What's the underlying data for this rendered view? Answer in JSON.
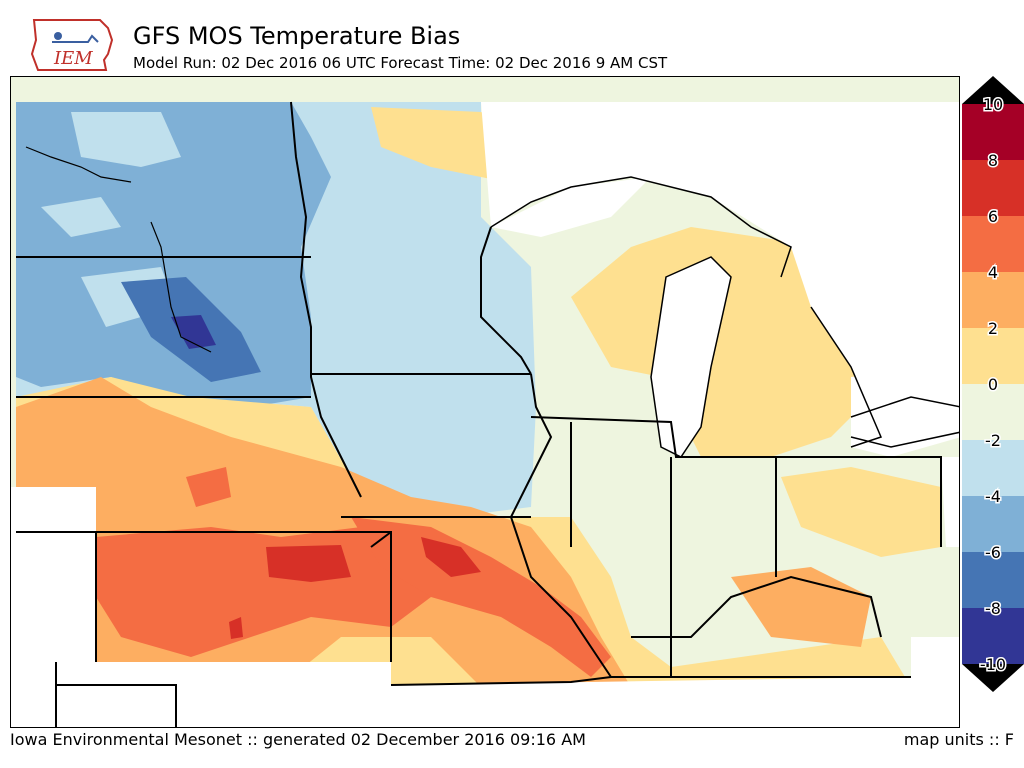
{
  "header": {
    "logo_text": "IEM",
    "title": "GFS MOS Temperature Bias",
    "subtitle": "Model Run: 02 Dec 2016 06 UTC Forecast Time: 02 Dec 2016 9 AM CST"
  },
  "map": {
    "variable": "Temperature Bias",
    "units": "F",
    "region": "Upper Midwest / Great Lakes"
  },
  "colorbar": {
    "levels": [
      {
        "value": 10,
        "label": "10",
        "color": "#a50026"
      },
      {
        "value": 8,
        "label": "8",
        "color": "#d73027"
      },
      {
        "value": 6,
        "label": "6",
        "color": "#f46d43"
      },
      {
        "value": 4,
        "label": "4",
        "color": "#fdae61"
      },
      {
        "value": 2,
        "label": "2",
        "color": "#fee090"
      },
      {
        "value": 0,
        "label": "0",
        "color": "#eef5df"
      },
      {
        "value": -2,
        "label": "-2",
        "color": "#c0e0ed"
      },
      {
        "value": -4,
        "label": "-4",
        "color": "#7fb0d6"
      },
      {
        "value": -6,
        "label": "-6",
        "color": "#4575b4"
      },
      {
        "value": -8,
        "label": "-8",
        "color": "#313695"
      },
      {
        "value": -10,
        "label": "-10",
        "color": "#1f2070"
      }
    ],
    "top_extend_color": "#000000",
    "bottom_extend_color": "#000000"
  },
  "footer": {
    "left": "Iowa Environmental Mesonet :: generated 02 December 2016 09:16 AM",
    "right": "map units :: F"
  }
}
